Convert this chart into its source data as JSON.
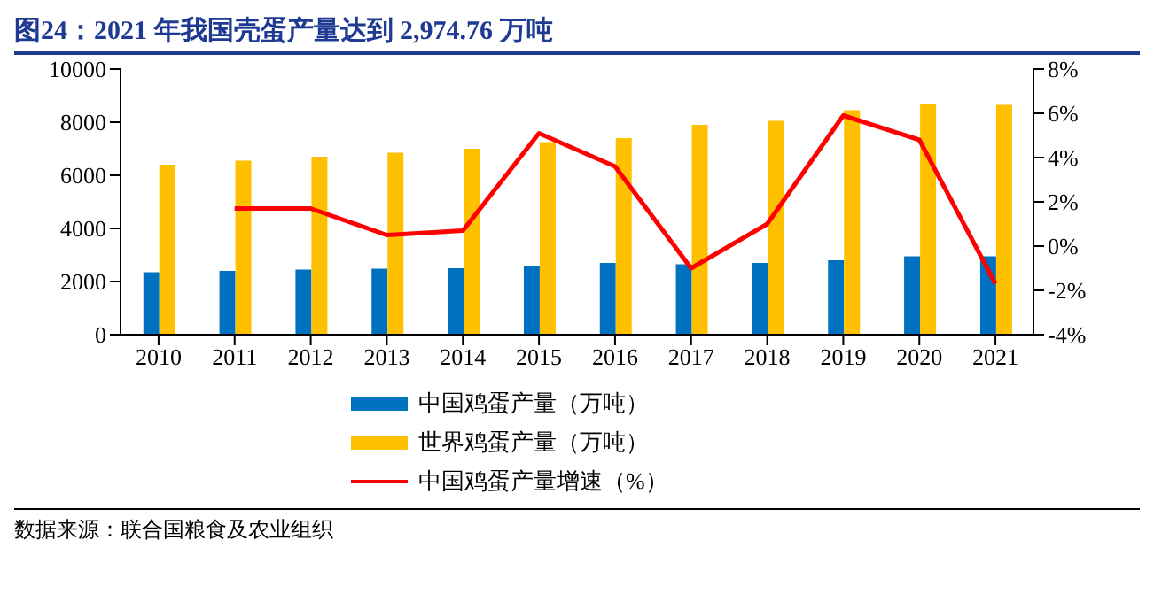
{
  "chart_data": {
    "type": "bar",
    "title": "图24：2021 年我国壳蛋产量达到 2,974.76 万吨",
    "categories": [
      "2010",
      "2011",
      "2012",
      "2013",
      "2014",
      "2015",
      "2016",
      "2017",
      "2018",
      "2019",
      "2020",
      "2021"
    ],
    "series": [
      {
        "name": "中国鸡蛋产量（万吨）",
        "color": "#0070c0",
        "values": [
          2350,
          2400,
          2450,
          2480,
          2500,
          2600,
          2700,
          2650,
          2700,
          2800,
          2950,
          2950
        ]
      },
      {
        "name": "世界鸡蛋产量（万吨）",
        "color": "#ffc000",
        "values": [
          6400,
          6550,
          6700,
          6850,
          7000,
          7250,
          7400,
          7900,
          8050,
          8450,
          8700,
          8650
        ]
      },
      {
        "name": "中国鸡蛋产量增速（%）",
        "type": "line",
        "axis": "y2",
        "color": "#ff0000",
        "marker": "none",
        "values": [
          null,
          1.7,
          1.7,
          0.5,
          0.7,
          5.1,
          3.6,
          -1.0,
          1.0,
          5.9,
          4.8,
          -1.7
        ]
      }
    ],
    "ylim": [
      0,
      10000
    ],
    "yticks": [
      0,
      2000,
      4000,
      6000,
      8000,
      10000
    ],
    "y2lim": [
      -4,
      8
    ],
    "y2ticks": [
      {
        "value": -4,
        "label": "-4%"
      },
      {
        "value": -2,
        "label": "-2%"
      },
      {
        "value": 0,
        "label": "0%"
      },
      {
        "value": 2,
        "label": "2%"
      },
      {
        "value": 4,
        "label": "4%"
      },
      {
        "value": 6,
        "label": "6%"
      },
      {
        "value": 8,
        "label": "8%"
      }
    ],
    "grid": false,
    "legend": "bottom",
    "annotations": [
      "数据来源：联合国粮食及农业组织"
    ]
  }
}
